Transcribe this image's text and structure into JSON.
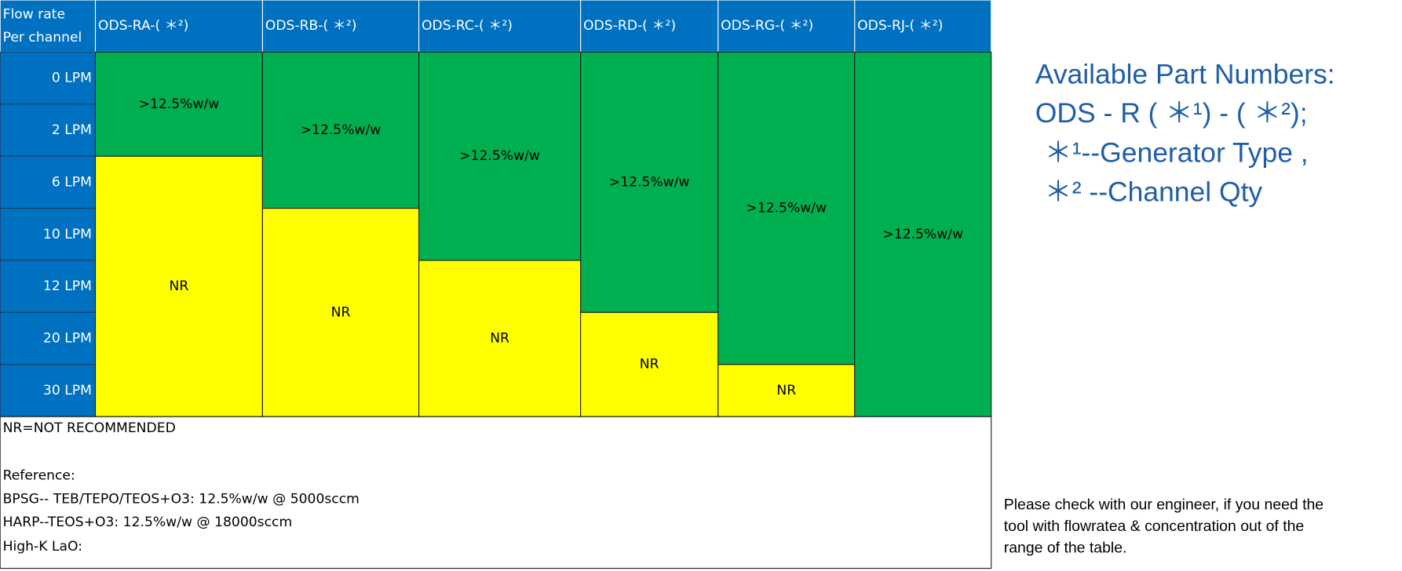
{
  "table": {
    "corner": [
      "Flow rate",
      "Per channel"
    ],
    "columns": [
      "ODS-RA-( ＊²)",
      "ODS-RB-( ＊²)",
      "ODS-RC-( ＊²)",
      "ODS-RD-( ＊²)",
      "ODS-RG-( ＊²)",
      "ODS-RJ-( ＊²)"
    ],
    "rows": [
      {
        "label": "0 LPM",
        "cells": [
          ">12.5%w/w",
          ">12.5%w/w",
          ">12.5%w/w",
          ">12.5%w/w",
          ">12.5%w/w",
          ">12.5%w/w"
        ]
      },
      {
        "label": "2 LPM",
        "cells": [
          ">12.5%w/w",
          ">12.5%w/w",
          ">12.5%w/w",
          ">12.5%w/w",
          ">12.5%w/w",
          ">12.5%w/w"
        ]
      },
      {
        "label": "6 LPM",
        "cells": [
          "NR",
          ">12.5%w/w",
          ">12.5%w/w",
          ">12.5%w/w",
          ">12.5%w/w",
          ">12.5%w/w"
        ]
      },
      {
        "label": "10 LPM",
        "cells": [
          "NR",
          "NR",
          ">12.5%w/w",
          ">12.5%w/w",
          ">12.5%w/w",
          ">12.5%w/w"
        ]
      },
      {
        "label": "12 LPM",
        "cells": [
          "NR",
          "NR",
          "NR",
          ">12.5%w/w",
          ">12.5%w/w",
          ">12.5%w/w"
        ]
      },
      {
        "label": "20 LPM",
        "cells": [
          "NR",
          "NR",
          "NR",
          "NR",
          ">12.5%w/w",
          ">12.5%w/w"
        ]
      },
      {
        "label": "30 LPM",
        "cells": [
          "NR",
          "NR",
          "NR",
          "NR",
          "NR",
          ">12.5%w/w"
        ]
      }
    ],
    "notes": [
      "NR=NOT RECOMMENDED",
      "Reference:",
      "BPSG-- TEB/TEPO/TEOS+O3: 12.5%w/w @ 5000sccm",
      "HARP--TEOS+O3: 12.5%w/w @ 18000sccm",
      "High-K LaO:"
    ]
  },
  "side": {
    "heading": [
      "Available Part Numbers:",
      "ODS - R ( ＊¹) - ( ＊²);",
      "＊¹--Generator Type ,",
      "＊² --Channel Qty"
    ],
    "note": [
      "Please check with our engineer, if you need the",
      "tool with flowratea & concentration out of the",
      "range of the table."
    ]
  }
}
